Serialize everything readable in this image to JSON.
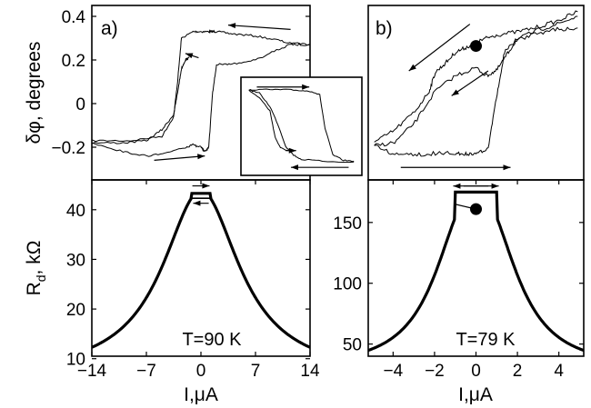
{
  "chart_data": [
    {
      "panel_label": "a)",
      "type": "line",
      "ylabel": "δφ, degrees",
      "xlim": [
        -14,
        14
      ],
      "ylim": [
        -0.35,
        0.45
      ],
      "yticks": [
        "0.4",
        "0.2",
        "0",
        "−0.2"
      ],
      "ytick_values": [
        0.4,
        0.2,
        0,
        -0.2
      ],
      "xticks_shown": false,
      "series": [
        {
          "x": [
            -14,
            -9,
            -5,
            -3.5,
            -3,
            -2.5,
            -1,
            0,
            1,
            1.5,
            2,
            4,
            7,
            10,
            12,
            14
          ],
          "y": [
            -0.17,
            -0.17,
            -0.15,
            -0.06,
            0.1,
            0.3,
            0.33,
            0.33,
            0.33,
            0.33,
            0.33,
            0.32,
            0.31,
            0.29,
            0.27,
            0.27
          ]
        },
        {
          "x": [
            14,
            12,
            10,
            7,
            4,
            2,
            1.5,
            1,
            0.5,
            0,
            -1,
            -2,
            -4,
            -7,
            -10,
            -14
          ],
          "y": [
            0.27,
            0.28,
            0.25,
            0.2,
            0.18,
            0.18,
            0.05,
            -0.2,
            -0.22,
            -0.2,
            -0.19,
            -0.2,
            -0.22,
            -0.24,
            -0.22,
            -0.18
          ]
        },
        {
          "x": [
            -14,
            -10,
            -7,
            -5,
            -3.5,
            -3,
            -2.5,
            -2,
            -1.5
          ],
          "y": [
            -0.18,
            -0.18,
            -0.17,
            -0.12,
            -0.05,
            0.05,
            0.16,
            0.2,
            0.21
          ]
        }
      ],
      "arrows": [
        {
          "from": [
            11.5,
            0.34
          ],
          "to": [
            3.5,
            0.36
          ]
        },
        {
          "from": [
            -6,
            -0.26
          ],
          "to": [
            0.5,
            -0.24
          ]
        },
        {
          "from": [
            -0.3,
            0.21
          ],
          "to": [
            -2,
            0.23
          ]
        }
      ]
    },
    {
      "panel_label": "",
      "type": "line",
      "inset_of": "a)",
      "series": [
        {
          "x": [
            -1,
            -0.6,
            -0.3,
            0,
            0.2,
            0.35,
            0.45,
            0.6,
            0.8,
            1
          ],
          "y": [
            0.94,
            0.94,
            0.94,
            0.93,
            0.92,
            0.88,
            0.5,
            0.2,
            0.14,
            0.13
          ]
        },
        {
          "x": [
            -1,
            -0.8,
            -0.6,
            -0.45,
            -0.3,
            -0.15,
            0,
            0.4,
            1
          ],
          "y": [
            0.94,
            0.9,
            0.75,
            0.55,
            0.3,
            0.2,
            0.15,
            0.13,
            0.12
          ]
        },
        {
          "x": [
            -1,
            -0.8,
            -0.6,
            -0.5,
            -0.4,
            -0.25
          ],
          "y": [
            0.93,
            0.85,
            0.7,
            0.4,
            0.28,
            0.25
          ]
        }
      ],
      "arrows": [
        {
          "from": [
            -0.85,
            0.97
          ],
          "to": [
            0.15,
            0.97
          ]
        },
        {
          "from": [
            0.9,
            0.06
          ],
          "to": [
            -0.2,
            0.06
          ]
        },
        {
          "from": [
            -0.3,
            0.25
          ],
          "to": [
            -0.1,
            0.25
          ]
        }
      ]
    },
    {
      "panel_label": "b)",
      "type": "line",
      "ylim": [
        0,
        1
      ],
      "yticks_shown": false,
      "xticks_shown": false,
      "series": [
        {
          "x": [
            -5,
            -4,
            -3,
            -2.3,
            -2,
            -1.5,
            -1,
            -0.5,
            0,
            0.5,
            1,
            2,
            3,
            4,
            5
          ],
          "y": [
            0.12,
            0.2,
            0.32,
            0.45,
            0.57,
            0.63,
            0.7,
            0.73,
            0.76,
            0.79,
            0.81,
            0.83,
            0.86,
            0.9,
            0.96
          ]
        },
        {
          "x": [
            5,
            4,
            3,
            2,
            1.4,
            1,
            0.6,
            0,
            -0.5,
            -1,
            -2,
            -3,
            -4,
            -5
          ],
          "y": [
            0.85,
            0.85,
            0.82,
            0.78,
            0.7,
            0.4,
            0.08,
            0.05,
            0.05,
            0.05,
            0.05,
            0.04,
            0.04,
            0.1
          ]
        },
        {
          "x": [
            -5,
            -4,
            -3,
            -2,
            -1,
            0,
            0.5,
            1,
            1.5,
            2,
            3,
            4,
            5
          ],
          "y": [
            0.1,
            0.12,
            0.25,
            0.45,
            0.55,
            0.6,
            0.55,
            0.58,
            0.68,
            0.78,
            0.84,
            0.88,
            0.93
          ]
        }
      ],
      "markers": [
        {
          "x": 0,
          "y": 0.74
        }
      ],
      "arrows": [
        {
          "from": [
            -0.3,
            0.88
          ],
          "to": [
            -3.3,
            0.58
          ]
        },
        {
          "from": [
            0.6,
            0.58
          ],
          "to": [
            -1.2,
            0.42
          ]
        },
        {
          "from": [
            -3.7,
            -0.04
          ],
          "to": [
            1.7,
            -0.04
          ]
        }
      ]
    },
    {
      "panel_label": "",
      "type": "line",
      "ylabel": "R_d, kΩ",
      "xlabel": "I,μA",
      "xlim": [
        -14,
        14
      ],
      "ylim": [
        10.5,
        46
      ],
      "xticks": [
        "−14",
        "−7",
        "0",
        "7",
        "14"
      ],
      "xtick_values": [
        -14,
        -7,
        0,
        7,
        14
      ],
      "yticks": [
        "40",
        "30",
        "20",
        "10"
      ],
      "ytick_values": [
        40,
        30,
        20,
        10
      ],
      "annotation": "T=90 K",
      "curve": {
        "baseline": 6.5,
        "amplitude": 37.3,
        "scale": 6,
        "power": 2,
        "top_flat": 43.3,
        "top_low": 42.3,
        "top_width": 1.2
      },
      "arrows": [
        {
          "from": [
            -1.1,
            44.8
          ],
          "to": [
            1.1,
            44.8
          ]
        },
        {
          "from": [
            1,
            41.3
          ],
          "to": [
            -1,
            41.3
          ]
        }
      ]
    },
    {
      "panel_label": "",
      "type": "line",
      "xlabel": "I,μA",
      "xlim": [
        -5.2,
        5.2
      ],
      "ylim": [
        40,
        185
      ],
      "xticks": [
        "−4",
        "−2",
        "0",
        "2",
        "4"
      ],
      "xtick_values": [
        -4,
        -2,
        0,
        2,
        4
      ],
      "yticks": [
        "150",
        "100",
        "50"
      ],
      "ytick_values": [
        150,
        100,
        50
      ],
      "annotation": "T=79 K",
      "curve": {
        "baseline": 30,
        "amplitude": 145,
        "scale": 2.1,
        "power": 2.4,
        "top_flat": 175,
        "top_width": 1.0
      },
      "markers": [
        {
          "x": 0,
          "y": 161
        }
      ],
      "arrows": [
        {
          "from": [
            -0.6,
            180
          ],
          "to": [
            1.1,
            180
          ]
        },
        {
          "from": [
            0.6,
            180
          ],
          "to": [
            -1.1,
            180
          ]
        }
      ]
    }
  ]
}
